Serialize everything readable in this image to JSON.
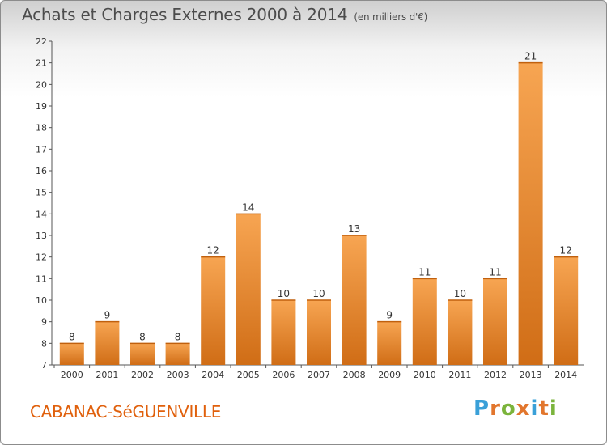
{
  "header": {
    "title": "Achats et Charges Externes 2000 à 2014",
    "unit": "(en milliers d'€)"
  },
  "footer": {
    "commune": "CABANAC-SéGUENVILLE",
    "logo_text": "Proxiti",
    "logo_colors": [
      "#3aa0d8",
      "#e2762d",
      "#7bb43c",
      "#e2762d",
      "#3aa0d8",
      "#e2762d",
      "#7bb43c"
    ]
  },
  "colors": {
    "bar_light": "#f7a552",
    "bar_dark": "#d06d16",
    "axis": "#555555",
    "grid_text": "#333333"
  },
  "chart_data": {
    "type": "bar",
    "title": "Achats et Charges Externes 2000 à 2014",
    "subtitle": "(en milliers d'€)",
    "categories": [
      "2000",
      "2001",
      "2002",
      "2003",
      "2004",
      "2005",
      "2006",
      "2007",
      "2008",
      "2009",
      "2010",
      "2011",
      "2012",
      "2013",
      "2014"
    ],
    "values": [
      8,
      9,
      8,
      8,
      12,
      14,
      10,
      10,
      13,
      9,
      11,
      10,
      11,
      21,
      12
    ],
    "ylim": [
      7,
      22
    ],
    "yticks": [
      7,
      8,
      9,
      10,
      11,
      12,
      13,
      14,
      15,
      16,
      17,
      18,
      19,
      20,
      21,
      22
    ],
    "xlabel": "",
    "ylabel": "",
    "grid": false,
    "legend": "none",
    "data_labels": true
  }
}
